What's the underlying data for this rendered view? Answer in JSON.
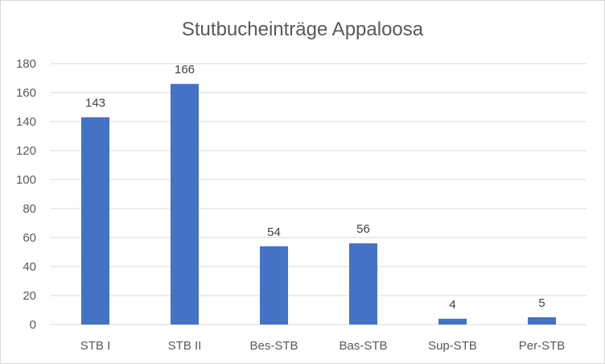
{
  "chart_data": {
    "type": "bar",
    "title": "Stutbucheinträge Appaloosa",
    "categories": [
      "STB I",
      "STB II",
      "Bes-STB",
      "Bas-STB",
      "Sup-STB",
      "Per-STB"
    ],
    "values": [
      143,
      166,
      54,
      56,
      4,
      5
    ],
    "ylim": [
      0,
      180
    ],
    "yticks": [
      0,
      20,
      40,
      60,
      80,
      100,
      120,
      140,
      160,
      180
    ],
    "grid": true,
    "legend": "none",
    "bar_color": "#4472c4",
    "grid_color": "#d9d9d9"
  }
}
